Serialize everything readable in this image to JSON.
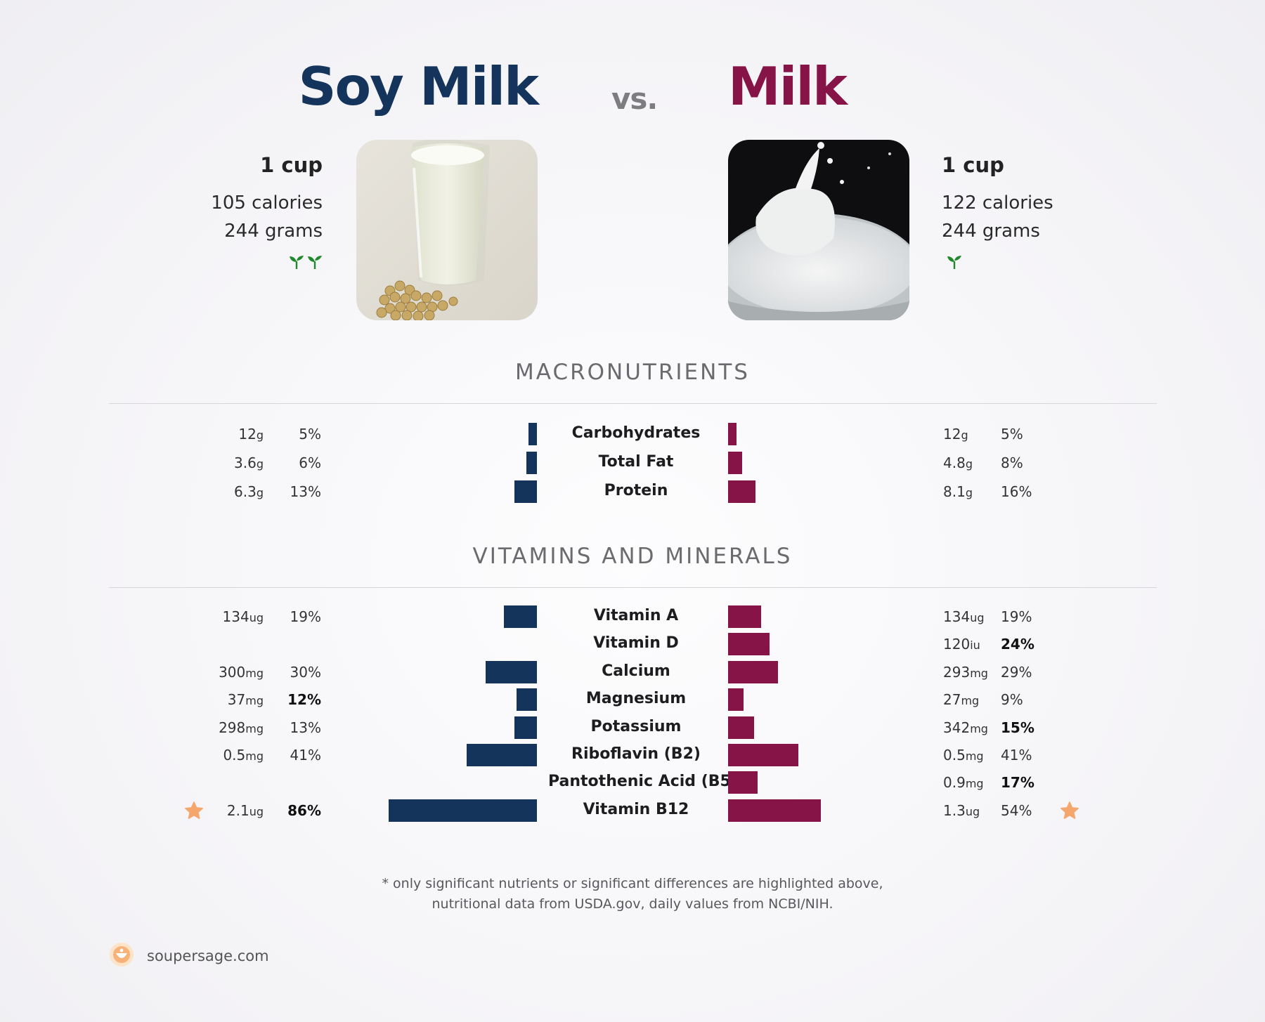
{
  "header": {
    "left_name": "Soy Milk",
    "vs": "vs.",
    "right_name": "Milk"
  },
  "left_food": {
    "serving": "1 cup",
    "calories": "105 calories",
    "grams": "244 grams",
    "sprouts": 2
  },
  "right_food": {
    "serving": "1 cup",
    "calories": "122 calories",
    "grams": "244 grams",
    "sprouts": 1
  },
  "colors": {
    "left": "#14345b",
    "right": "#861447",
    "star": "#f5a66c",
    "sprout": "#1f8a2b"
  },
  "sections": {
    "macro": "MACRONUTRIENTS",
    "vitamins": "VITAMINS AND MINERALS"
  },
  "chart_data": {
    "type": "bar",
    "x_unit": "% daily value",
    "series": [
      {
        "name": "Soy Milk"
      },
      {
        "name": "Milk"
      }
    ],
    "macronutrients": [
      {
        "name": "Carbohydrates",
        "left_amount": "12",
        "left_unit": "g",
        "left_pct": 5,
        "left_bold": false,
        "right_amount": "12",
        "right_unit": "g",
        "right_pct": 5,
        "right_bold": false
      },
      {
        "name": "Total Fat",
        "left_amount": "3.6",
        "left_unit": "g",
        "left_pct": 6,
        "left_bold": false,
        "right_amount": "4.8",
        "right_unit": "g",
        "right_pct": 8,
        "right_bold": false
      },
      {
        "name": "Protein",
        "left_amount": "6.3",
        "left_unit": "g",
        "left_pct": 13,
        "left_bold": false,
        "right_amount": "8.1",
        "right_unit": "g",
        "right_pct": 16,
        "right_bold": false
      }
    ],
    "vitamins": [
      {
        "name": "Vitamin A",
        "left_amount": "134",
        "left_unit": "ug",
        "left_pct": 19,
        "left_bold": false,
        "right_amount": "134",
        "right_unit": "ug",
        "right_pct": 19,
        "right_bold": false
      },
      {
        "name": "Vitamin D",
        "left_amount": null,
        "left_unit": null,
        "left_pct": null,
        "left_bold": false,
        "right_amount": "120",
        "right_unit": "iu",
        "right_pct": 24,
        "right_bold": true
      },
      {
        "name": "Calcium",
        "left_amount": "300",
        "left_unit": "mg",
        "left_pct": 30,
        "left_bold": false,
        "right_amount": "293",
        "right_unit": "mg",
        "right_pct": 29,
        "right_bold": false
      },
      {
        "name": "Magnesium",
        "left_amount": "37",
        "left_unit": "mg",
        "left_pct": 12,
        "left_bold": true,
        "right_amount": "27",
        "right_unit": "mg",
        "right_pct": 9,
        "right_bold": false
      },
      {
        "name": "Potassium",
        "left_amount": "298",
        "left_unit": "mg",
        "left_pct": 13,
        "left_bold": false,
        "right_amount": "342",
        "right_unit": "mg",
        "right_pct": 15,
        "right_bold": true
      },
      {
        "name": "Riboflavin (B2)",
        "left_amount": "0.5",
        "left_unit": "mg",
        "left_pct": 41,
        "left_bold": false,
        "right_amount": "0.5",
        "right_unit": "mg",
        "right_pct": 41,
        "right_bold": false
      },
      {
        "name": "Pantothenic Acid (B5)",
        "left_amount": null,
        "left_unit": null,
        "left_pct": null,
        "left_bold": false,
        "right_amount": "0.9",
        "right_unit": "mg",
        "right_pct": 17,
        "right_bold": true
      },
      {
        "name": "Vitamin B12",
        "left_amount": "2.1",
        "left_unit": "ug",
        "left_pct": 86,
        "left_bold": true,
        "left_star": true,
        "right_amount": "1.3",
        "right_unit": "ug",
        "right_pct": 54,
        "right_bold": false,
        "right_star": true
      }
    ]
  },
  "footnote": {
    "line1": "* only significant nutrients or significant differences are highlighted above,",
    "line2": "nutritional data from USDA.gov, daily values from NCBI/NIH."
  },
  "brand": {
    "text": "soupersage.com",
    "icon": "soupersage-logo-icon"
  }
}
